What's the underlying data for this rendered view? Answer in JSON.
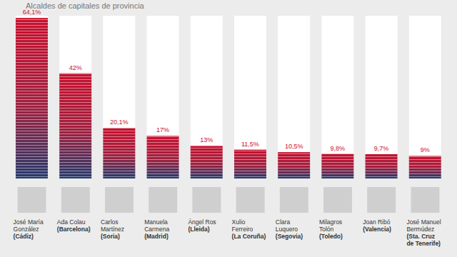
{
  "chart_data": {
    "type": "bar",
    "title": "Alcaldes de capitales de provincia",
    "categories": [
      "José María González (Cádiz)",
      "Ada Colau (Barcelona)",
      "Carlos Martínez (Soria)",
      "Manuela Carmena (Madrid)",
      "Àngel Ros (Lleida)",
      "Xulio Ferreiro (La Coruña)",
      "Clara Luquero (Segovia)",
      "Milagros Tolón (Toledo)",
      "Joan Ribó (Valencia)",
      "José Manuel Bermúdez (Sta. Cruz de Tenerife)"
    ],
    "values": [
      64.1,
      42,
      20.1,
      17,
      13,
      11.5,
      10.5,
      9.8,
      9.7,
      9
    ],
    "value_labels": [
      "64,1%",
      "42%",
      "20,1%",
      "17%",
      "13%",
      "11,5%",
      "10,5%",
      "9,8%",
      "9,7%",
      "9%"
    ],
    "data_labels": true,
    "color": "#c8102e",
    "ylim": [
      0,
      65
    ],
    "tick_labels": "x",
    "grid": false
  }
}
